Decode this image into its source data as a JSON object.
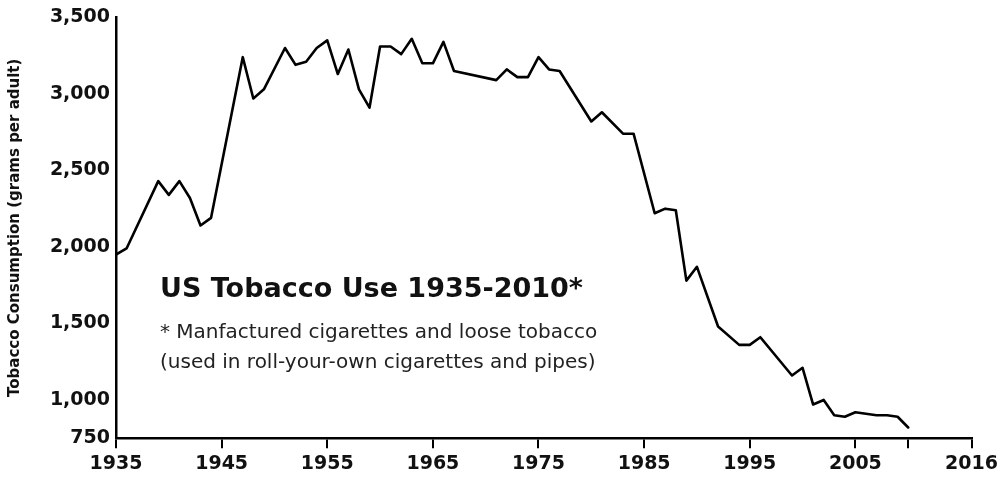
{
  "chart_data": {
    "type": "line",
    "title": "US Tobacco Use 1935-2010*",
    "ylabel": "Tobacco Consumption (grams per adult)",
    "annotations": [
      "* Manfactured cigarettes and loose tobacco\n(used in roll-your-own cigarettes and pipes)"
    ],
    "series": [
      {
        "color": "#000000",
        "x": [
          1935,
          1936,
          1939,
          1940,
          1941,
          1942,
          1943,
          1944,
          1947,
          1948,
          1949,
          1951,
          1952,
          1953,
          1954,
          1955,
          1956,
          1957,
          1958,
          1959,
          1960,
          1961,
          1962,
          1963,
          1964,
          1965,
          1966,
          1967,
          1971,
          1972,
          1973,
          1974,
          1975,
          1976,
          1977,
          1980,
          1981,
          1983,
          1984,
          1986,
          1987,
          1988,
          1989,
          1990,
          1992,
          1994,
          1995,
          1996,
          1999,
          2000,
          2001,
          2002,
          2003,
          2004,
          2005,
          2007,
          2008,
          2009,
          2010
        ],
        "values": [
          1950,
          1990,
          2430,
          2340,
          2430,
          2320,
          2140,
          2190,
          3240,
          2970,
          3030,
          3300,
          3190,
          3210,
          3300,
          3350,
          3130,
          3290,
          3030,
          2910,
          3310,
          3310,
          3260,
          3360,
          3200,
          3200,
          3340,
          3150,
          3090,
          3160,
          3110,
          3110,
          3240,
          3160,
          3150,
          2820,
          2880,
          2740,
          2740,
          2220,
          2250,
          2240,
          1780,
          1870,
          1480,
          1360,
          1360,
          1410,
          1160,
          1210,
          970,
          1000,
          900,
          890,
          920,
          900,
          900,
          890,
          820
        ]
      }
    ],
    "xlim": [
      1935,
      2016
    ],
    "xticks": [
      1935,
      1945,
      1955,
      1965,
      1975,
      1985,
      1995,
      2005,
      {
        "value": 2010,
        "label": null
      },
      2016
    ],
    "ylim": [
      750,
      3500
    ],
    "yticks": [
      750,
      {
        "value": 1000,
        "label": "1,000"
      },
      {
        "value": 1500,
        "label": "1,500"
      },
      {
        "value": 2000,
        "label": "2,000"
      },
      {
        "value": 2500,
        "label": "2,500"
      },
      {
        "value": 3000,
        "label": "3,000"
      },
      {
        "value": 3500,
        "label": "3,500"
      }
    ],
    "grid": false,
    "legend": false,
    "marker": "none",
    "line_style": "solid"
  }
}
